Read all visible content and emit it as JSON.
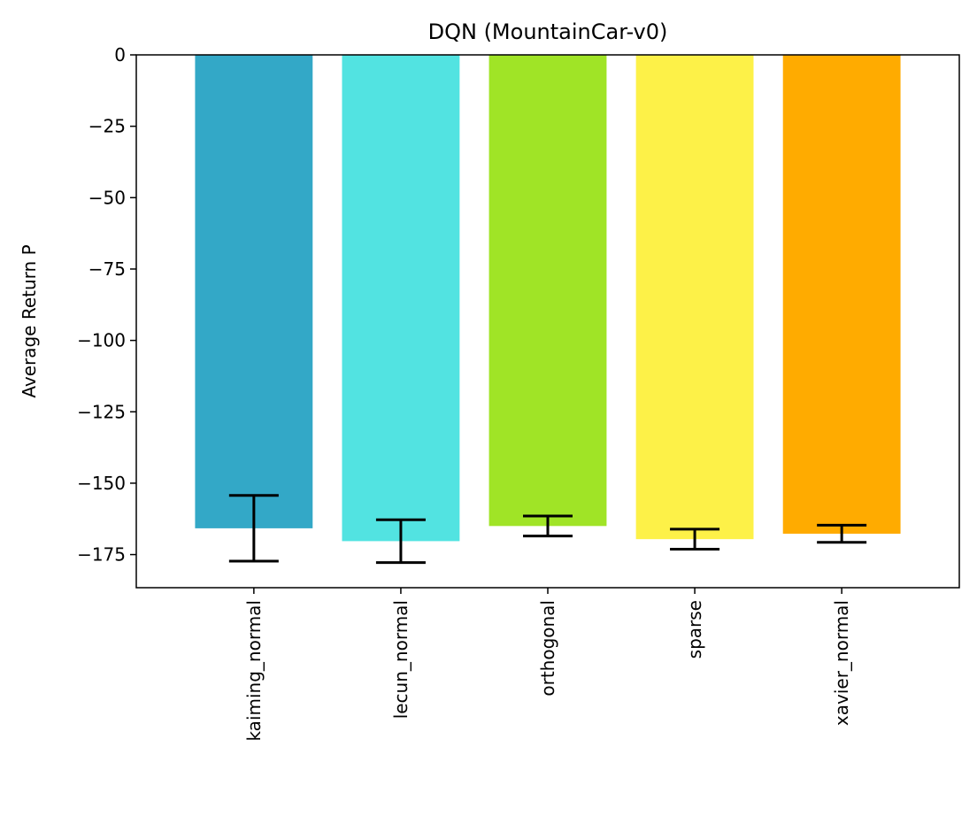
{
  "chart_data": {
    "type": "bar",
    "title": "DQN (MountainCar-v0)",
    "xlabel": "",
    "ylabel": "Average Return P",
    "categories": [
      "kaiming_normal",
      "lecun_normal",
      "orthogonal",
      "sparse",
      "xavier_normal"
    ],
    "values": [
      -165.8,
      -170.3,
      -165.0,
      -169.6,
      -167.7
    ],
    "errors": [
      11.5,
      7.5,
      3.5,
      3.5,
      3.0
    ],
    "colors": [
      "#33a8c7",
      "#52e3e1",
      "#a0e426",
      "#fdf148",
      "#ffab00"
    ],
    "error_bar_color": "#000000",
    "yticks": [
      0,
      -25,
      -50,
      -75,
      -100,
      -125,
      -150,
      -175
    ],
    "ytick_labels": [
      "0",
      "−25",
      "−50",
      "−75",
      "−100",
      "−125",
      "−150",
      "−175"
    ],
    "ylim": [
      -186.6,
      0
    ],
    "grid": false,
    "legend": "none"
  }
}
